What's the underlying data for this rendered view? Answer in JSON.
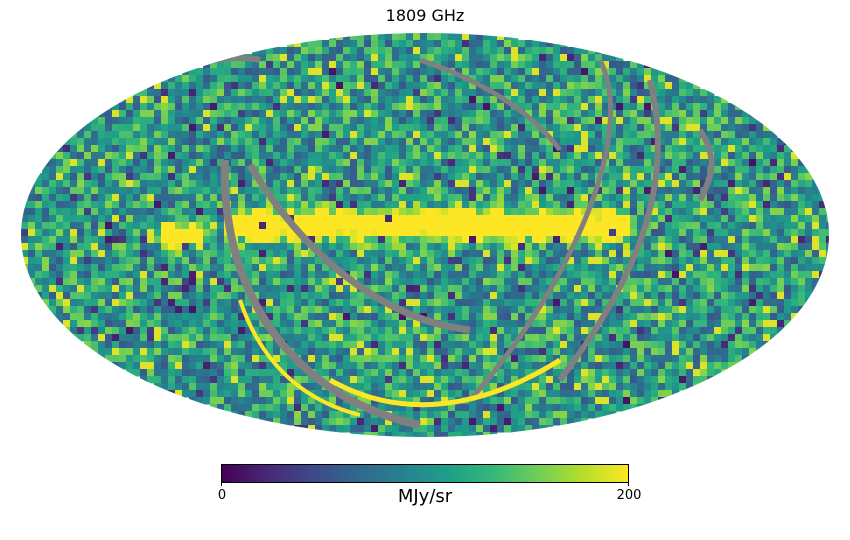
{
  "title": "1809 GHz",
  "map": {
    "projection": "mollweide",
    "colormap": "viridis",
    "missing_color": "#808080",
    "range": [
      0,
      200
    ]
  },
  "colorbar": {
    "min_label": "0",
    "max_label": "200",
    "unit": "MJy/sr",
    "stops": [
      "#440154",
      "#482878",
      "#3e4989",
      "#31688e",
      "#26828e",
      "#1f9e89",
      "#35b779",
      "#6ece58",
      "#b5de2b",
      "#fde725"
    ]
  }
}
